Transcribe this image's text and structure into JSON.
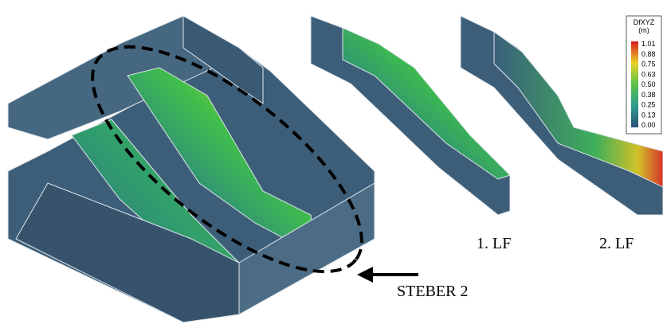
{
  "legend": {
    "title": "DfXYZ",
    "unit": "(m)",
    "ticks": [
      "1.01",
      "0.88",
      "0.75",
      "0.63",
      "0.50",
      "0.38",
      "0.25",
      "0.13",
      "0.00"
    ]
  },
  "labels": {
    "first": "1. LF",
    "second": "2. LF",
    "pointer": "STEBER 2"
  }
}
